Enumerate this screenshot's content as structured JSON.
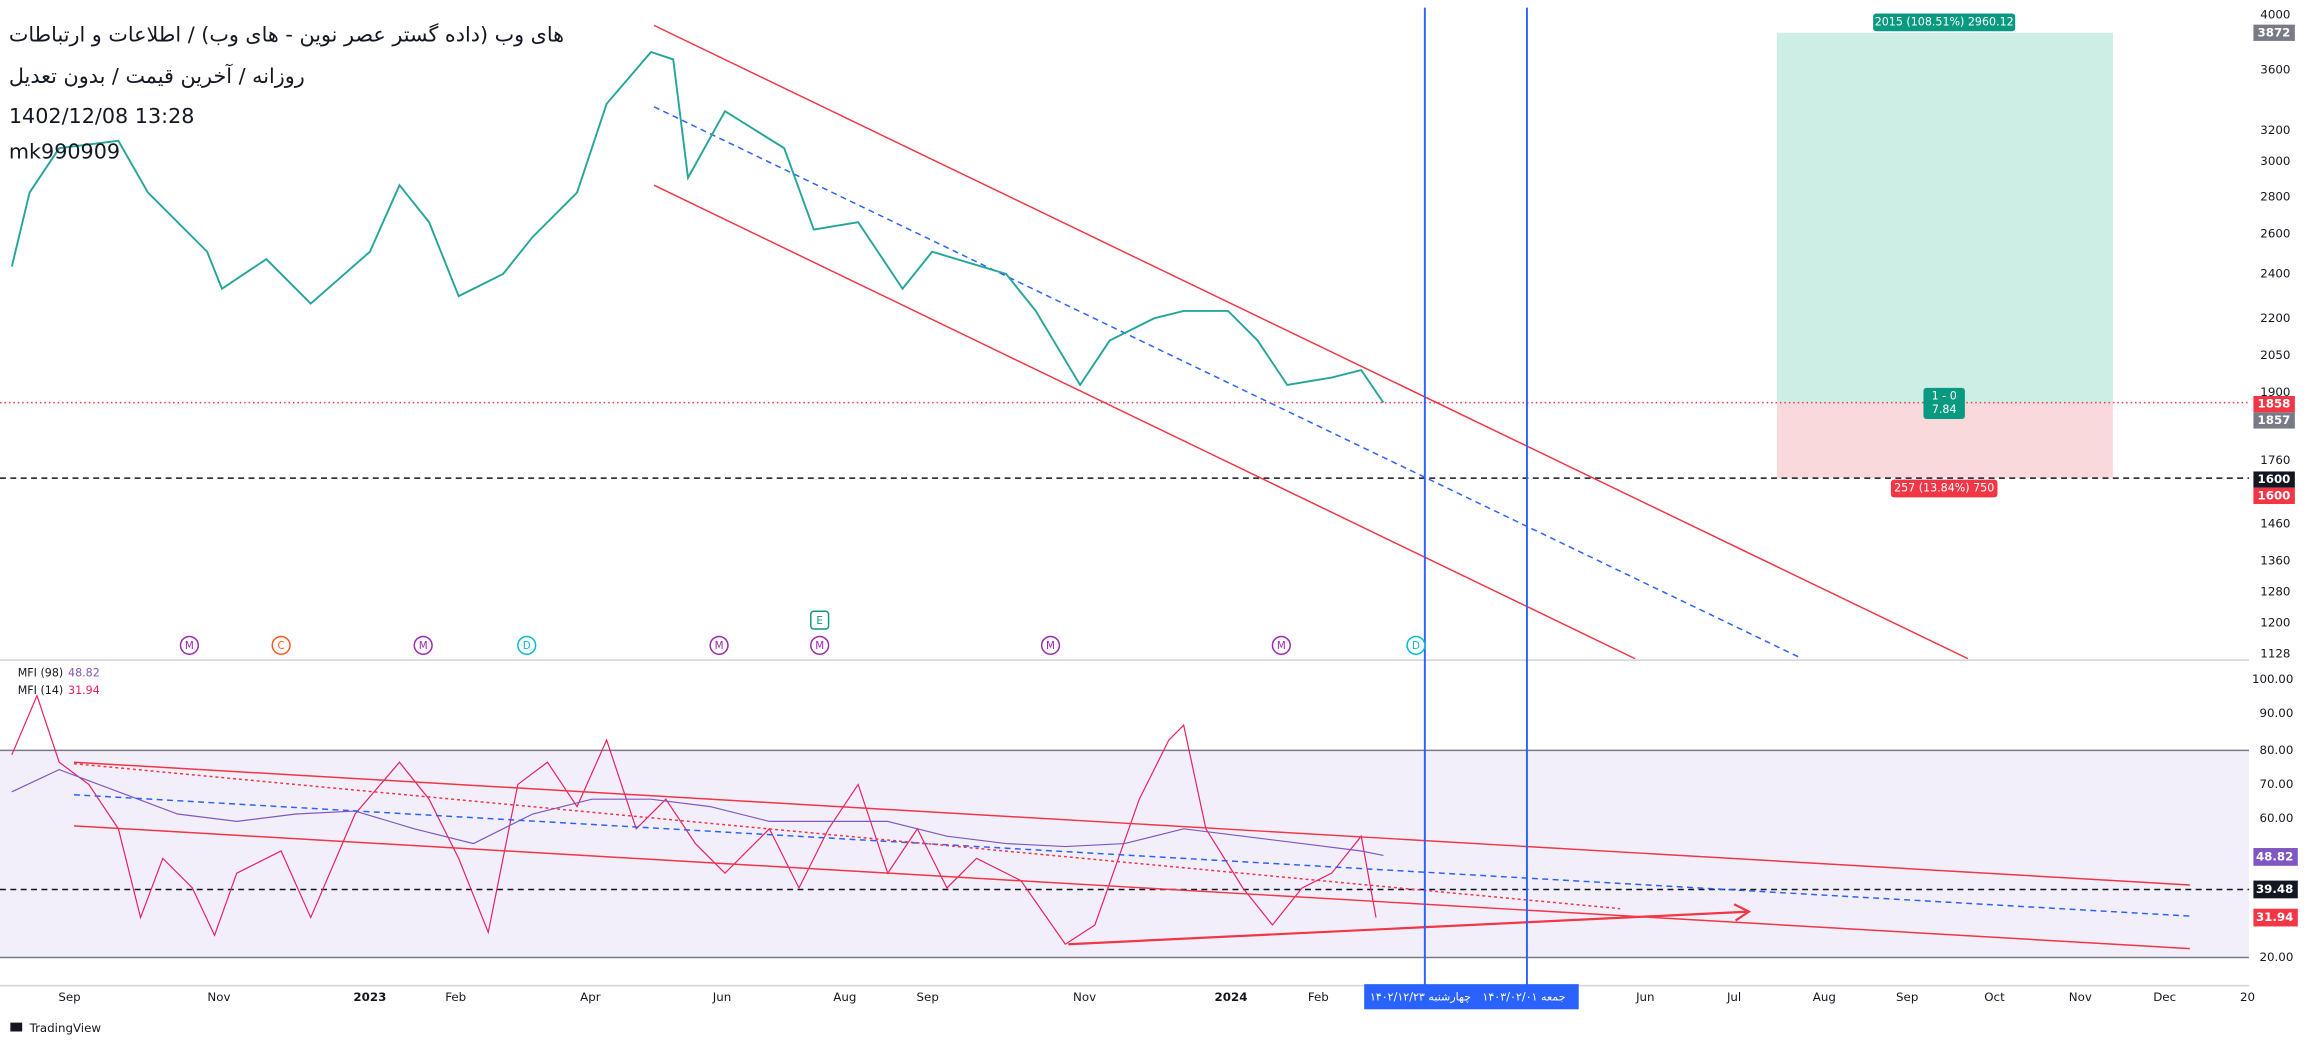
{
  "header": {
    "title": "های وب (داده گستر عصر نوین - های وب) / اطلاعات و ارتباطات",
    "subtitle": "روزانه / آخرین قیمت / بدون تعدیل",
    "datetime": "1402/12/08 13:28",
    "user": "mk990909"
  },
  "price_axis": [
    "4000",
    "3600",
    "3200",
    "3000",
    "2800",
    "2600",
    "2400",
    "2200",
    "2050",
    "1900",
    "1760",
    "1460",
    "1360",
    "1280",
    "1200",
    "1128"
  ],
  "price_badges": [
    "3872",
    "1858",
    "1857",
    "1600",
    "1600"
  ],
  "position": {
    "target": "2015 (108.51%) 2960.12",
    "ratio": "1 - 0",
    "ratio_value": "7.84",
    "stop": "257 (13.84%) 750"
  },
  "markers": [
    "M",
    "C",
    "M",
    "D",
    "M",
    "M",
    "M",
    "M",
    "D",
    "E"
  ],
  "mfi": {
    "legend": [
      {
        "name": "MFI (98)",
        "value": "48.82"
      },
      {
        "name": "MFI (14)",
        "value": "31.94"
      }
    ],
    "axis": [
      "100.00",
      "90.00",
      "80.00",
      "70.00",
      "60.00",
      "20.00"
    ],
    "badges": [
      "48.82",
      "39.48",
      "31.94"
    ]
  },
  "time_axis": [
    "Sep",
    "Nov",
    "2023",
    "Feb",
    "Apr",
    "Jun",
    "Aug",
    "Sep",
    "Nov",
    "2024",
    "Feb",
    "Jun",
    "Jul",
    "Aug",
    "Sep",
    "Oct",
    "Nov",
    "Dec",
    "20"
  ],
  "date_labels": [
    "چهارشنبه ۱۴۰۲/۱۲/۲۳",
    "جمعه ۱۴۰۳/۰۲/۰۱"
  ],
  "brand": "TradingView"
}
